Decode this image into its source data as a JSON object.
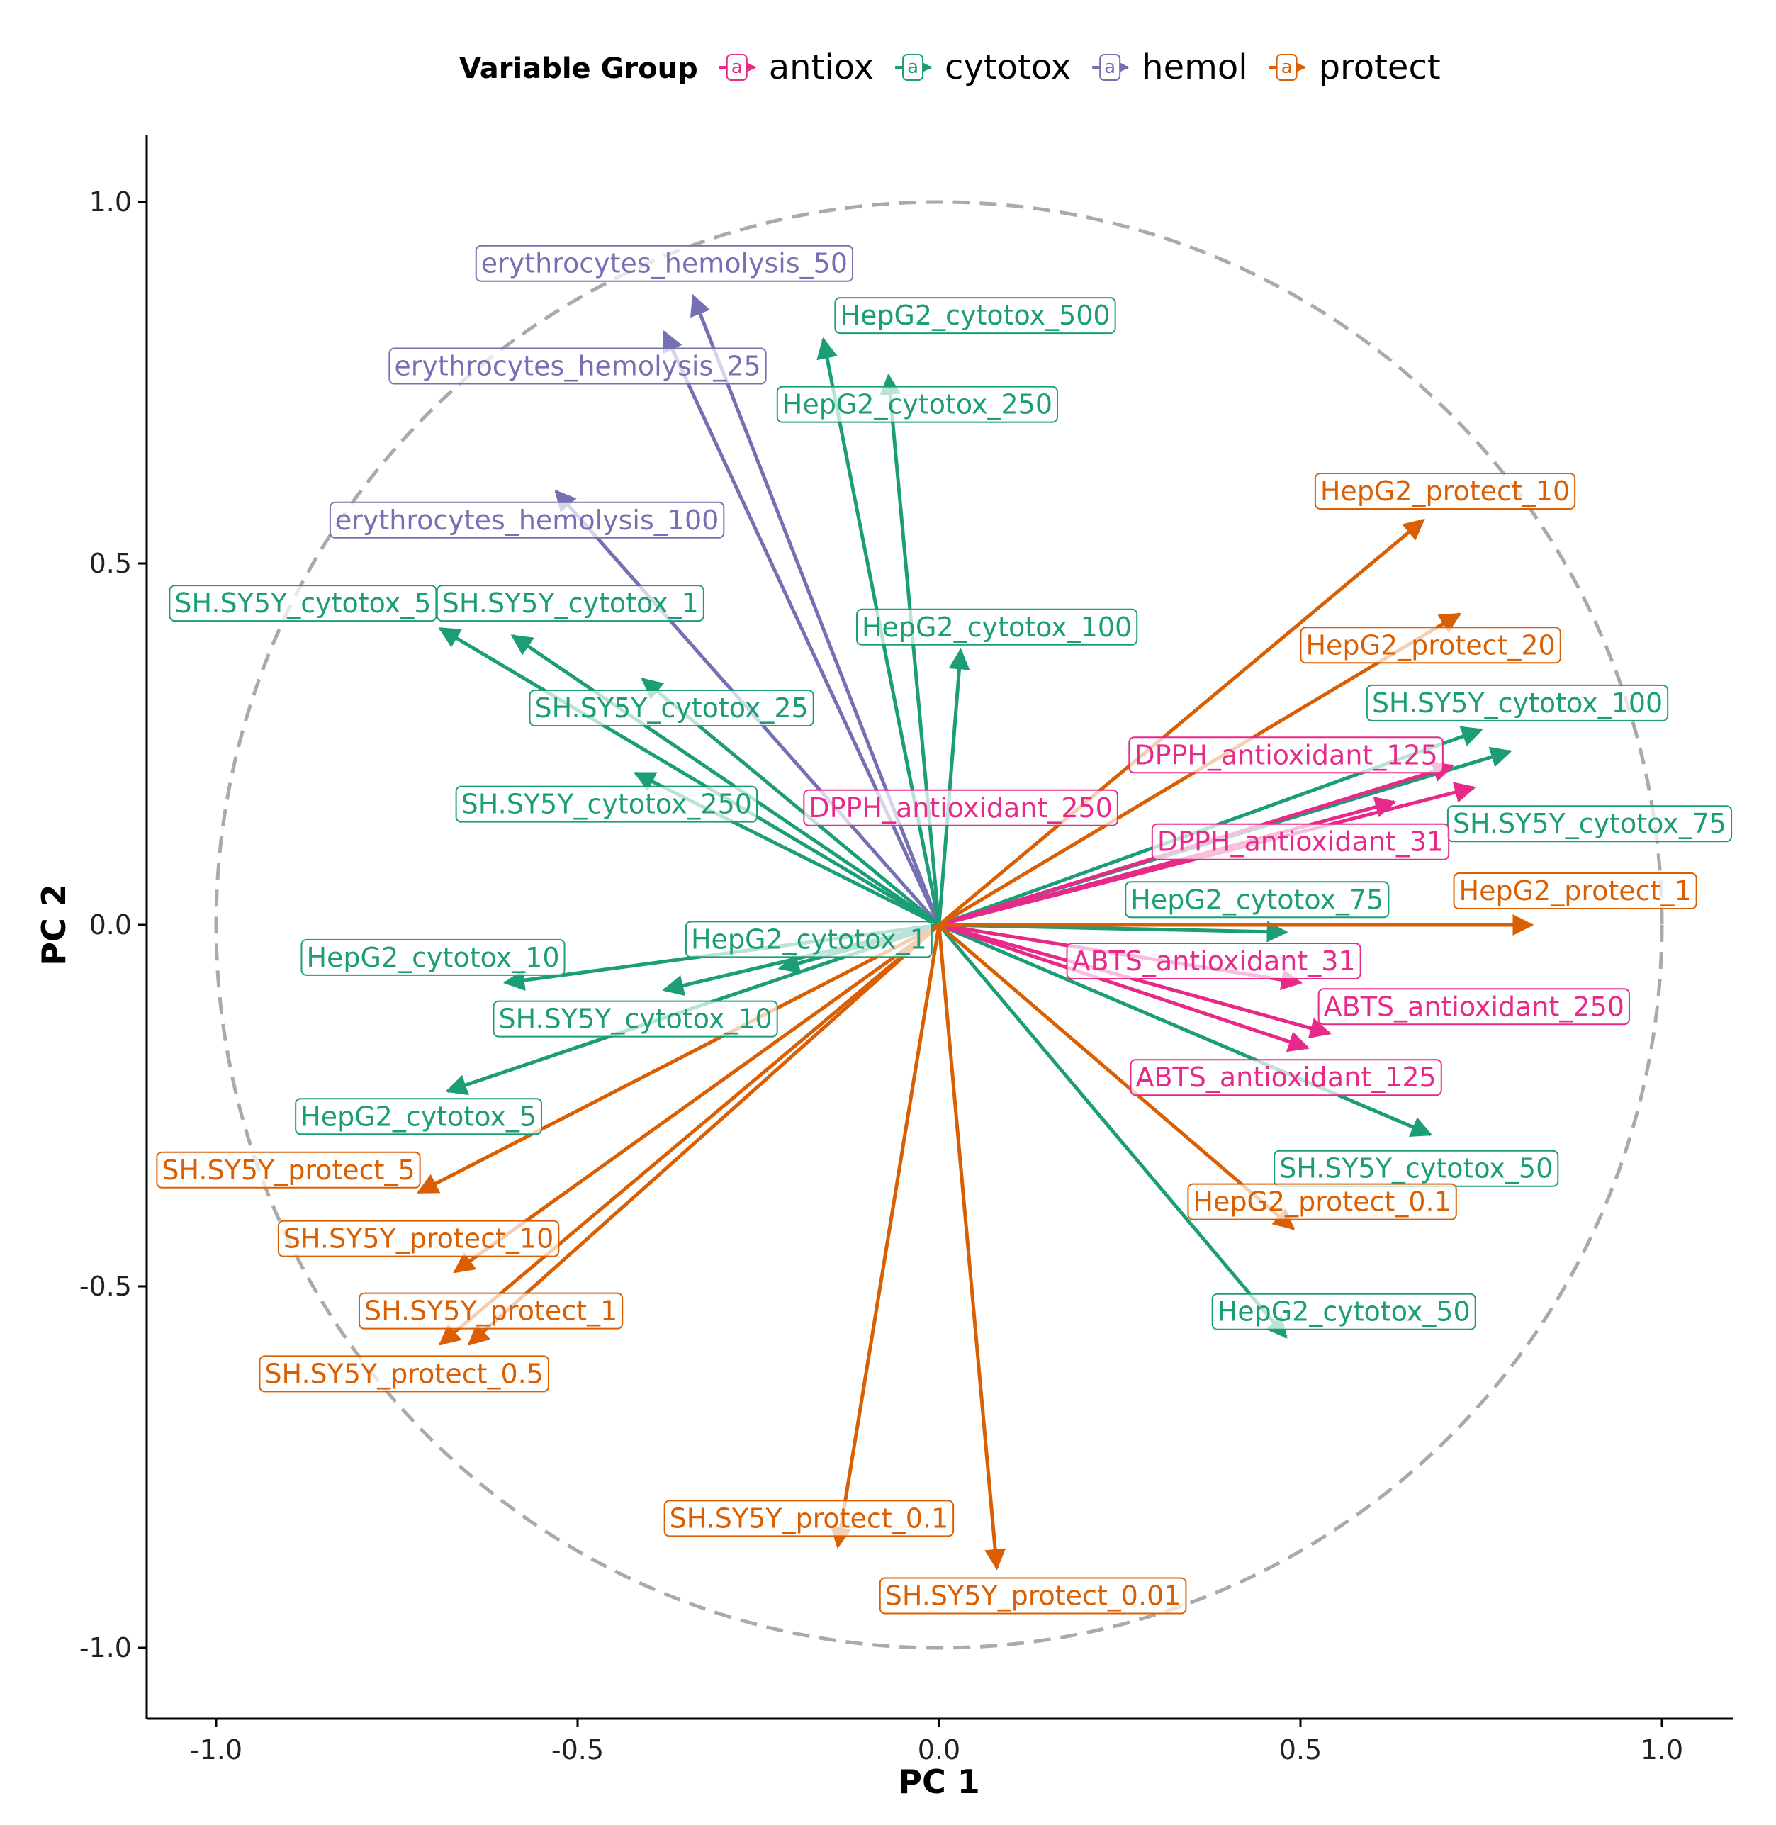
{
  "chart_data": {
    "type": "pca-variable-biplot",
    "xlabel": "PC 1",
    "ylabel": "PC 2",
    "xlim": [
      -1.1,
      1.1
    ],
    "ylim": [
      -1.1,
      1.1
    ],
    "x_ticks": [
      -1.0,
      -0.5,
      0.0,
      0.5,
      1.0
    ],
    "y_ticks": [
      -1.0,
      -0.5,
      0.0,
      0.5,
      1.0
    ],
    "x_tick_labels": [
      "-1.0",
      "-0.5",
      "0.0",
      "0.5",
      "1.0"
    ],
    "y_tick_labels": [
      "-1.0",
      "-0.5",
      "0.0",
      "0.5",
      "1.0"
    ],
    "unit_circle": true,
    "legend": {
      "title": "Variable Group",
      "position": "top",
      "groups": [
        {
          "key": "antiox",
          "label": "antiox",
          "color": "#E7298A"
        },
        {
          "key": "cytotox",
          "label": "cytotox",
          "color": "#1B9E77"
        },
        {
          "key": "hemol",
          "label": "hemol",
          "color": "#7570B3"
        },
        {
          "key": "protect",
          "label": "protect",
          "color": "#D95F02"
        }
      ]
    },
    "variables": [
      {
        "name": "erythrocytes_hemolysis_50",
        "group": "hemol",
        "x": -0.34,
        "y": 0.87,
        "lx": -0.38,
        "ly": 0.915
      },
      {
        "name": "erythrocytes_hemolysis_25",
        "group": "hemol",
        "x": -0.38,
        "y": 0.82,
        "lx": -0.5,
        "ly": 0.773
      },
      {
        "name": "erythrocytes_hemolysis_100",
        "group": "hemol",
        "x": -0.53,
        "y": 0.6,
        "lx": -0.57,
        "ly": 0.56
      },
      {
        "name": "HepG2_cytotox_500",
        "group": "cytotox",
        "x": -0.16,
        "y": 0.81,
        "lx": 0.05,
        "ly": 0.843
      },
      {
        "name": "HepG2_cytotox_250",
        "group": "cytotox",
        "x": -0.07,
        "y": 0.76,
        "lx": -0.03,
        "ly": 0.72
      },
      {
        "name": "HepG2_cytotox_100",
        "group": "cytotox",
        "x": 0.03,
        "y": 0.38,
        "lx": 0.08,
        "ly": 0.412
      },
      {
        "name": "SH.SY5Y_cytotox_5",
        "group": "cytotox",
        "x": -0.69,
        "y": 0.41,
        "lx": -0.88,
        "ly": 0.445
      },
      {
        "name": "SH.SY5Y_cytotox_1",
        "group": "cytotox",
        "x": -0.59,
        "y": 0.4,
        "lx": -0.51,
        "ly": 0.445
      },
      {
        "name": "SH.SY5Y_cytotox_25",
        "group": "cytotox",
        "x": -0.41,
        "y": 0.34,
        "lx": -0.37,
        "ly": 0.3
      },
      {
        "name": "SH.SY5Y_cytotox_250",
        "group": "cytotox",
        "x": -0.42,
        "y": 0.21,
        "lx": -0.46,
        "ly": 0.167
      },
      {
        "name": "SH.SY5Y_cytotox_100",
        "group": "cytotox",
        "x": 0.75,
        "y": 0.27,
        "lx": 0.8,
        "ly": 0.307
      },
      {
        "name": "SH.SY5Y_cytotox_75",
        "group": "cytotox",
        "x": 0.79,
        "y": 0.24,
        "lx": 0.9,
        "ly": 0.14
      },
      {
        "name": "HepG2_cytotox_75",
        "group": "cytotox",
        "x": 0.48,
        "y": -0.01,
        "lx": 0.44,
        "ly": 0.035
      },
      {
        "name": "HepG2_cytotox_1",
        "group": "cytotox",
        "x": -0.22,
        "y": -0.06,
        "lx": -0.18,
        "ly": -0.02
      },
      {
        "name": "HepG2_cytotox_10",
        "group": "cytotox",
        "x": -0.6,
        "y": -0.08,
        "lx": -0.7,
        "ly": -0.045
      },
      {
        "name": "SH.SY5Y_cytotox_10",
        "group": "cytotox",
        "x": -0.38,
        "y": -0.09,
        "lx": -0.42,
        "ly": -0.13
      },
      {
        "name": "HepG2_cytotox_5",
        "group": "cytotox",
        "x": -0.68,
        "y": -0.23,
        "lx": -0.72,
        "ly": -0.265
      },
      {
        "name": "SH.SY5Y_cytotox_50",
        "group": "cytotox",
        "x": 0.68,
        "y": -0.29,
        "lx": 0.66,
        "ly": -0.337
      },
      {
        "name": "HepG2_cytotox_50",
        "group": "cytotox",
        "x": 0.48,
        "y": -0.57,
        "lx": 0.56,
        "ly": -0.535
      },
      {
        "name": "DPPH_antioxidant_125",
        "group": "antiox",
        "x": 0.71,
        "y": 0.22,
        "lx": 0.48,
        "ly": 0.235
      },
      {
        "name": "DPPH_antioxidant_250",
        "group": "antiox",
        "x": 0.63,
        "y": 0.17,
        "lx": 0.03,
        "ly": 0.162
      },
      {
        "name": "DPPH_antioxidant_31",
        "group": "antiox",
        "x": 0.74,
        "y": 0.19,
        "lx": 0.5,
        "ly": 0.115
      },
      {
        "name": "ABTS_antioxidant_31",
        "group": "antiox",
        "x": 0.5,
        "y": -0.08,
        "lx": 0.38,
        "ly": -0.05
      },
      {
        "name": "ABTS_antioxidant_250",
        "group": "antiox",
        "x": 0.54,
        "y": -0.15,
        "lx": 0.74,
        "ly": -0.113
      },
      {
        "name": "ABTS_antioxidant_125",
        "group": "antiox",
        "x": 0.51,
        "y": -0.17,
        "lx": 0.48,
        "ly": -0.211
      },
      {
        "name": "HepG2_protect_10",
        "group": "protect",
        "x": 0.67,
        "y": 0.56,
        "lx": 0.7,
        "ly": 0.6
      },
      {
        "name": "HepG2_protect_20",
        "group": "protect",
        "x": 0.72,
        "y": 0.43,
        "lx": 0.68,
        "ly": 0.387
      },
      {
        "name": "HepG2_protect_1",
        "group": "protect",
        "x": 0.82,
        "y": 0.0,
        "lx": 0.88,
        "ly": 0.047
      },
      {
        "name": "HepG2_protect_0.1",
        "group": "protect",
        "x": 0.49,
        "y": -0.42,
        "lx": 0.53,
        "ly": -0.383
      },
      {
        "name": "SH.SY5Y_protect_5",
        "group": "protect",
        "x": -0.72,
        "y": -0.37,
        "lx": -0.9,
        "ly": -0.339
      },
      {
        "name": "SH.SY5Y_protect_10",
        "group": "protect",
        "x": -0.67,
        "y": -0.48,
        "lx": -0.72,
        "ly": -0.434
      },
      {
        "name": "SH.SY5Y_protect_1",
        "group": "protect",
        "x": -0.65,
        "y": -0.58,
        "lx": -0.62,
        "ly": -0.534
      },
      {
        "name": "SH.SY5Y_protect_0.5",
        "group": "protect",
        "x": -0.69,
        "y": -0.58,
        "lx": -0.74,
        "ly": -0.621
      },
      {
        "name": "SH.SY5Y_protect_0.1",
        "group": "protect",
        "x": -0.14,
        "y": -0.86,
        "lx": -0.18,
        "ly": -0.821
      },
      {
        "name": "SH.SY5Y_protect_0.01",
        "group": "protect",
        "x": 0.08,
        "y": -0.89,
        "lx": 0.13,
        "ly": -0.928
      }
    ]
  }
}
